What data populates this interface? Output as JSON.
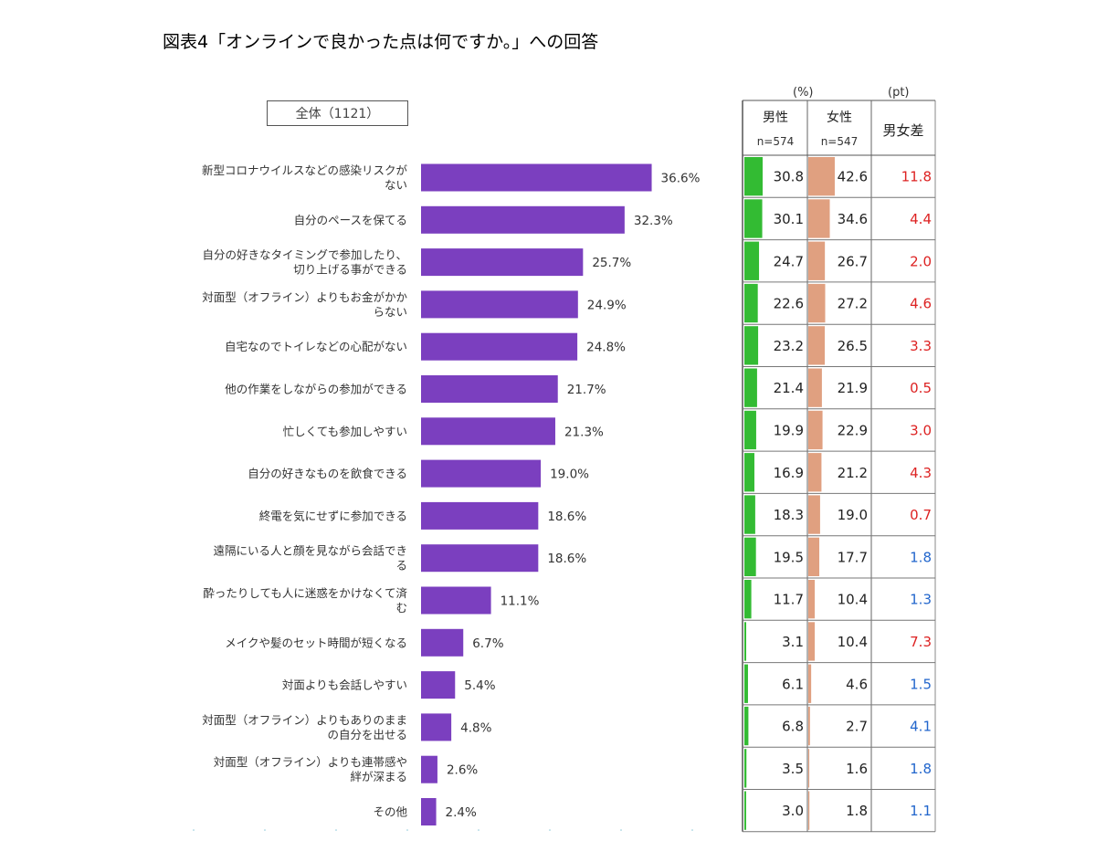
{
  "title": "図表4「オンラインで良かった点は何ですか。」への回答",
  "overall_label": "全体（1121）",
  "table_header": {
    "unit_pct": "(%)",
    "unit_pt": "(pt)",
    "male": "男性",
    "female": "女性",
    "male_n": "n=574",
    "female_n": "n=547",
    "diff": "男女差"
  },
  "colors": {
    "bar": "#7b3fbf",
    "male_bar": "#33bb33",
    "female_bar": "#e0a080",
    "diff_red": "#dd2222",
    "diff_blue": "#2266cc"
  },
  "chart_data": {
    "type": "bar",
    "orientation": "horizontal",
    "categories": [
      [
        "新型コロナウイルスなどの感染リスクが",
        "ない"
      ],
      [
        "自分のペースを保てる"
      ],
      [
        "自分の好きなタイミングで参加したり、",
        "切り上げる事ができる"
      ],
      [
        "対面型（オフライン）よりもお金がかか",
        "らない"
      ],
      [
        "自宅なのでトイレなどの心配がない"
      ],
      [
        "他の作業をしながらの参加ができる"
      ],
      [
        "忙しくても参加しやすい"
      ],
      [
        "自分の好きなものを飲食できる"
      ],
      [
        "終電を気にせずに参加できる"
      ],
      [
        "遠隔にいる人と顔を見ながら会話でき",
        "る"
      ],
      [
        "酔ったりしても人に迷惑をかけなくて済",
        "む"
      ],
      [
        "メイクや髪のセット時間が短くなる"
      ],
      [
        "対面よりも会話しやすい"
      ],
      [
        "対面型（オフライン）よりもありのまま",
        "の自分を出せる"
      ],
      [
        "対面型（オフライン）よりも連帯感や",
        "絆が深まる"
      ],
      [
        "その他"
      ]
    ],
    "overall": [
      36.6,
      32.3,
      25.7,
      24.9,
      24.8,
      21.7,
      21.3,
      19.0,
      18.6,
      18.6,
      11.1,
      6.7,
      5.4,
      4.8,
      2.6,
      2.4
    ],
    "overall_labels": [
      "36.6%",
      "32.3%",
      "25.7%",
      "24.9%",
      "24.8%",
      "21.7%",
      "21.3%",
      "19.0%",
      "18.6%",
      "18.6%",
      "11.1%",
      "6.7%",
      "5.4%",
      "4.8%",
      "2.6%",
      "2.4%"
    ],
    "male": [
      "30.8",
      "30.1",
      "24.7",
      "22.6",
      "23.2",
      "21.4",
      "19.9",
      "16.9",
      "18.3",
      "19.5",
      "11.7",
      "3.1",
      "6.1",
      "6.8",
      "3.5",
      "3.0"
    ],
    "female": [
      "42.6",
      "34.6",
      "26.7",
      "27.2",
      "26.5",
      "21.9",
      "22.9",
      "21.2",
      "19.0",
      "17.7",
      "10.4",
      "10.4",
      "4.6",
      "2.7",
      "1.6",
      "1.8"
    ],
    "diff": [
      "11.8",
      "4.4",
      "2.0",
      "4.6",
      "3.3",
      "0.5",
      "3.0",
      "4.3",
      "0.7",
      "1.8",
      "1.3",
      "7.3",
      "1.5",
      "4.1",
      "1.8",
      "1.1"
    ],
    "diff_color": [
      "red",
      "red",
      "red",
      "red",
      "red",
      "red",
      "red",
      "red",
      "red",
      "blue",
      "blue",
      "red",
      "blue",
      "blue",
      "blue",
      "blue"
    ]
  }
}
